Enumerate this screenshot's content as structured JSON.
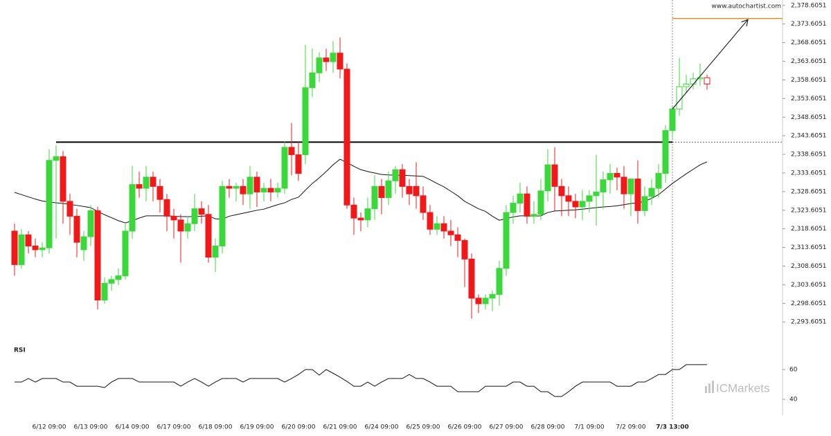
{
  "chart_data": {
    "type": "candlestick",
    "watermark_top": "www.autochartist.com",
    "watermark_bottom": "ICMarkets",
    "categories": [
      null,
      null,
      null,
      null,
      null,
      "6/12 09:00",
      null,
      null,
      null,
      null,
      null,
      "6/13 09:00",
      null,
      null,
      null,
      null,
      null,
      "6/14 09:00",
      null,
      null,
      null,
      null,
      null,
      "6/17 09:00",
      null,
      null,
      null,
      null,
      null,
      "6/18 09:00",
      null,
      null,
      null,
      null,
      null,
      "6/19 09:00",
      null,
      null,
      null,
      null,
      null,
      "6/20 09:00",
      null,
      null,
      null,
      null,
      null,
      "6/21 09:00",
      null,
      null,
      null,
      null,
      null,
      "6/24 09:00",
      null,
      null,
      null,
      null,
      null,
      "6/25 09:00",
      null,
      null,
      null,
      null,
      null,
      "6/26 09:00",
      null,
      null,
      null,
      null,
      null,
      "6/27 09:00",
      null,
      null,
      null,
      null,
      null,
      "6/28 09:00",
      null,
      null,
      null,
      null,
      null,
      "7/1 09:00",
      null,
      null,
      null,
      null,
      null,
      "7/2 09:00",
      null,
      null,
      null,
      null,
      null,
      "7/3 13:00",
      null,
      null,
      null,
      null,
      null
    ],
    "open": [
      2318,
      2309,
      2317,
      2314,
      2313,
      2313.5,
      2337,
      2338,
      2326,
      2322,
      2313,
      2316.5,
      2323.5,
      2299.5,
      2304,
      2305,
      2306,
      2318,
      2330.5,
      2329.5,
      2332.5,
      2330,
      2326.5,
      2322,
      2321,
      2318,
      2320,
      2324,
      2322.5,
      2311,
      2314,
      2330,
      2329.5,
      2330,
      2328,
      2332.5,
      2328.5,
      2329.5,
      2328.5,
      2329.5,
      2340.5,
      2338.5,
      2338.5,
      2356.5,
      2360.5,
      2364.5,
      2363.5,
      2365.8,
      2361.5,
      2325,
      2321.5,
      2321,
      2324,
      2330,
      2327,
      2331.5,
      2334.5,
      2330,
      2330,
      2327.5,
      2323,
      2318.5,
      2320,
      2318,
      2317,
      2315.5,
      2310.5,
      2300,
      2298.5,
      2300,
      2301,
      2308,
      2323,
      2325.5,
      2328,
      2322,
      2322.5,
      2328.8,
      2335.8,
      2330,
      2327.5,
      2326,
      2324.5,
      2326,
      2327.5,
      2328.5,
      2331.8,
      2333.5,
      2332.5,
      2328,
      2332,
      2323.5,
      2327.3,
      2329.5,
      2333.5,
      2345,
      2350.8,
      2356.8,
      2357.5,
      2358.9,
      2359.2
    ],
    "high": [
      2320,
      2318.5,
      2318,
      2316,
      2315,
      2340,
      2341,
      2339.5,
      2328,
      2324,
      2318,
      2325,
      2324.5,
      2305.5,
      2306,
      2308,
      2320,
      2335.5,
      2334,
      2335.5,
      2334,
      2332,
      2328,
      2324,
      2322.5,
      2322,
      2328,
      2326,
      2325,
      2316,
      2331.5,
      2332,
      2331,
      2332,
      2335.5,
      2334,
      2331,
      2332,
      2331,
      2342,
      2347,
      2342,
      2368,
      2367,
      2366,
      2367,
      2369,
      2370,
      2363,
      2327,
      2323,
      2327,
      2333,
      2332,
      2334,
      2335.5,
      2336,
      2332,
      2336.5,
      2330,
      2325,
      2322,
      2322,
      2321,
      2319,
      2316,
      2312,
      2301,
      2301,
      2302,
      2310,
      2325,
      2327.5,
      2331,
      2330,
      2326,
      2332,
      2340,
      2340.5,
      2332,
      2330,
      2328,
      2329,
      2329,
      2338.5,
      2334,
      2336,
      2335,
      2335.5,
      2332,
      2337,
      2330,
      2332,
      2336,
      2346.5,
      2351.5,
      2364.5,
      2360,
      2360.5,
      2363,
      2360
    ],
    "low": [
      2306,
      2308,
      2312,
      2311,
      2311,
      2312,
      2316,
      2320,
      2317,
      2311,
      2310,
      2314,
      2297,
      2298.5,
      2302,
      2303.5,
      2305,
      2316,
      2327,
      2326,
      2326,
      2323,
      2318,
      2316,
      2309.5,
      2316,
      2318,
      2320,
      2309.5,
      2307,
      2312,
      2327,
      2326,
      2325,
      2324,
      2324.5,
      2326,
      2326,
      2327,
      2328,
      2333,
      2331.5,
      2336,
      2354,
      2358,
      2361,
      2360.5,
      2359,
      2324,
      2317,
      2318,
      2319,
      2321,
      2322.5,
      2325,
      2328,
      2327,
      2325,
      2324,
      2321,
      2317,
      2317,
      2316,
      2314,
      2311,
      2303,
      2294.5,
      2296,
      2297,
      2296.5,
      2298,
      2306,
      2320,
      2323,
      2320,
      2320,
      2321,
      2326,
      2323.5,
      2322,
      2322,
      2321.5,
      2321,
      2323,
      2319.5,
      2324,
      2328,
      2329,
      2324,
      2322,
      2320,
      2322,
      2325,
      2327,
      2331,
      2343,
      2349,
      2355,
      2356,
      2357,
      2356
    ],
    "close": [
      2309,
      2317,
      2314,
      2313,
      2313.5,
      2337,
      2338,
      2326,
      2322,
      2315,
      2316.5,
      2323.5,
      2299.5,
      2304,
      2305,
      2306,
      2318,
      2330.5,
      2329.5,
      2332.5,
      2330,
      2326.5,
      2322,
      2321,
      2318,
      2320,
      2324,
      2322.5,
      2311,
      2314,
      2330,
      2329.5,
      2330,
      2328,
      2332.5,
      2328.5,
      2329.5,
      2328.5,
      2329.5,
      2340.5,
      2338.5,
      2333.5,
      2356.5,
      2360.5,
      2364.5,
      2363.5,
      2365.8,
      2361.5,
      2325,
      2321.5,
      2321,
      2324,
      2330,
      2327,
      2331.5,
      2334.5,
      2330,
      2328,
      2327.5,
      2323,
      2318.5,
      2320,
      2318,
      2317,
      2315.5,
      2310.5,
      2300,
      2298.5,
      2300,
      2301,
      2308,
      2323,
      2325.5,
      2328,
      2322,
      2322.5,
      2328.8,
      2335.8,
      2330,
      2327.5,
      2326,
      2324.5,
      2326,
      2327.5,
      2328.5,
      2331.8,
      2333.5,
      2332.5,
      2328,
      2332,
      2323.5,
      2327.3,
      2329.5,
      2333.5,
      2345,
      2350.8,
      2356.8,
      2357.5,
      2358.9,
      2359.2,
      2357.5
    ],
    "up_color": "#3ad83a",
    "down_color": "#f01818",
    "hollow_from_index": 96,
    "ma_values": [
      2328.4,
      2327.8,
      2327.2,
      2326.6,
      2326.1,
      2325.8,
      2325.6,
      2325.4,
      2325.2,
      2324.9,
      2324.6,
      2324.3,
      2323.3,
      2322.4,
      2321.6,
      2320.8,
      2320.2,
      2320.8,
      2321.5,
      2322.1,
      2322.1,
      2322.1,
      2322.1,
      2322.0,
      2321.9,
      2321.9,
      2321.9,
      2322.0,
      2322.1,
      2321.3,
      2321.2,
      2322.0,
      2322.4,
      2322.8,
      2323.2,
      2323.6,
      2323.9,
      2324.5,
      2325.1,
      2325.6,
      2326.5,
      2327.1,
      2329.0,
      2330.8,
      2332.3,
      2334.0,
      2335.8,
      2337.3,
      2336.4,
      2335.4,
      2334.5,
      2334.0,
      2333.6,
      2333.2,
      2333.1,
      2333.0,
      2333.0,
      2332.9,
      2332.8,
      2332.7,
      2331.8,
      2330.8,
      2329.9,
      2328.7,
      2327.5,
      2326.0,
      2325.0,
      2324.0,
      2323.3,
      2322.0,
      2320.9,
      2321.4,
      2321.8,
      2322.1,
      2322.1,
      2322.0,
      2322.1,
      2323.0,
      2323.4,
      2323.5,
      2323.6,
      2323.7,
      2323.9,
      2324.1,
      2324.3,
      2324.5,
      2324.6,
      2324.8,
      2325.1,
      2325.4,
      2325.6,
      2326.0,
      2326.8,
      2327.8,
      2329.3,
      2330.8,
      2332.1,
      2333.4,
      2334.6,
      2335.8,
      2336.6
    ],
    "ylim": [
      2289.0,
      2379.5
    ],
    "yticks": [
      {
        "value": 2293.6051,
        "label": "2,293.6051"
      },
      {
        "value": 2298.6051,
        "label": "2,298.6051"
      },
      {
        "value": 2303.6051,
        "label": "2,303.6051"
      },
      {
        "value": 2308.6051,
        "label": "2,308.6051"
      },
      {
        "value": 2313.6051,
        "label": "2,313.6051"
      },
      {
        "value": 2318.6051,
        "label": "2,318.6051"
      },
      {
        "value": 2323.6051,
        "label": "2,323.6051"
      },
      {
        "value": 2328.6051,
        "label": "2,328.6051"
      },
      {
        "value": 2333.6051,
        "label": "2,333.6051"
      },
      {
        "value": 2338.6051,
        "label": "2,338.6051"
      },
      {
        "value": 2343.6051,
        "label": "2,343.6051"
      },
      {
        "value": 2348.6051,
        "label": "2,348.6051"
      },
      {
        "value": 2353.6051,
        "label": "2,353.6051"
      },
      {
        "value": 2358.6051,
        "label": "2,358.6051"
      },
      {
        "value": 2363.6051,
        "label": "2,363.6051"
      },
      {
        "value": 2368.6051,
        "label": "2,368.6051"
      },
      {
        "value": 2373.6051,
        "label": "2,373.6051"
      },
      {
        "value": 2378.6051,
        "label": "2,378.6051"
      }
    ],
    "support": {
      "value": 2341.9,
      "start_index": 6
    },
    "target_level": 2375.1,
    "target_color": "#e08a1e",
    "marker_index": 95,
    "arrow": {
      "from": [
        95,
        2350.8
      ],
      "to": [
        105.9,
        2374.8
      ]
    },
    "rsi": {
      "label": "RSI",
      "ylim": [
        30,
        70
      ],
      "yticks": [
        40,
        60
      ],
      "values": [
        51.6,
        51.6,
        54.0,
        51.6,
        54.0,
        54.0,
        54.0,
        51.6,
        51.6,
        48.8,
        48.8,
        48.8,
        48.8,
        47.9,
        51.6,
        54.0,
        54.0,
        54.0,
        51.6,
        51.6,
        51.6,
        51.6,
        51.6,
        51.6,
        48.8,
        51.6,
        54.0,
        51.6,
        48.8,
        51.6,
        54.0,
        54.0,
        54.0,
        51.6,
        54.0,
        54.0,
        54.0,
        54.0,
        54.0,
        51.6,
        54.0,
        56.7,
        60.0,
        60.0,
        56.3,
        60.0,
        57.5,
        54.9,
        52.0,
        48.8,
        48.8,
        51.6,
        48.8,
        51.6,
        54.0,
        54.0,
        54.0,
        56.7,
        54.0,
        54.0,
        51.6,
        48.8,
        48.8,
        48.8,
        45.1,
        45.1,
        45.1,
        45.1,
        48.8,
        48.8,
        48.8,
        48.8,
        51.6,
        51.6,
        48.8,
        48.8,
        45.1,
        45.1,
        41.9,
        41.9,
        45.1,
        48.8,
        51.6,
        51.6,
        51.6,
        51.6,
        51.6,
        48.8,
        48.8,
        48.8,
        51.6,
        51.6,
        54.0,
        56.7,
        56.7,
        60.0,
        60.0,
        63.3,
        63.3,
        63.3,
        63.3
      ]
    }
  }
}
